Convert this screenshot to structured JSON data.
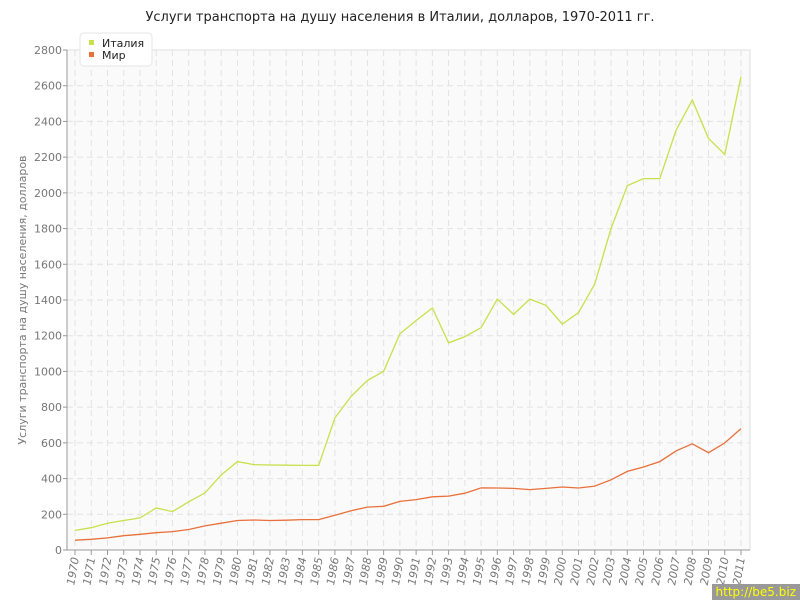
{
  "chart_data": {
    "type": "line",
    "title": "Услуги транспорта на душу населения в Италии, долларов, 1970-2011 гг.",
    "xlabel": "",
    "ylabel": "Услуги транспорта на душу населения, долларов",
    "ylim": [
      0,
      2800
    ],
    "yticks": [
      0,
      200,
      400,
      600,
      800,
      1000,
      1200,
      1400,
      1600,
      1800,
      2000,
      2200,
      2400,
      2600,
      2800
    ],
    "grid": true,
    "legend_position": "top-left",
    "x": [
      1970,
      1971,
      1972,
      1973,
      1974,
      1975,
      1976,
      1977,
      1978,
      1979,
      1980,
      1981,
      1982,
      1983,
      1984,
      1985,
      1986,
      1987,
      1988,
      1989,
      1990,
      1991,
      1992,
      1993,
      1994,
      1995,
      1996,
      1997,
      1998,
      1999,
      2000,
      2001,
      2002,
      2003,
      2004,
      2005,
      2006,
      2007,
      2008,
      2009,
      2010,
      2011
    ],
    "series": [
      {
        "name": "Италия",
        "color": "#c8e04a",
        "values": [
          110,
          125,
          150,
          165,
          180,
          235,
          215,
          270,
          320,
          420,
          495,
          478,
          476,
          475,
          474,
          474,
          740,
          860,
          950,
          1000,
          1210,
          1285,
          1355,
          1160,
          1195,
          1245,
          1405,
          1320,
          1405,
          1370,
          1265,
          1330,
          1490,
          1800,
          2040,
          2080,
          2080,
          2350,
          2520,
          2305,
          2215,
          2650
        ]
      },
      {
        "name": "Мир",
        "color": "#e8703a",
        "values": [
          55,
          60,
          68,
          80,
          88,
          97,
          103,
          115,
          135,
          150,
          165,
          168,
          165,
          167,
          170,
          170,
          195,
          220,
          240,
          245,
          272,
          282,
          298,
          302,
          318,
          348,
          347,
          345,
          338,
          345,
          353,
          347,
          358,
          393,
          440,
          465,
          495,
          555,
          595,
          545,
          600,
          680
        ]
      }
    ]
  },
  "watermark": "http://be5.biz"
}
